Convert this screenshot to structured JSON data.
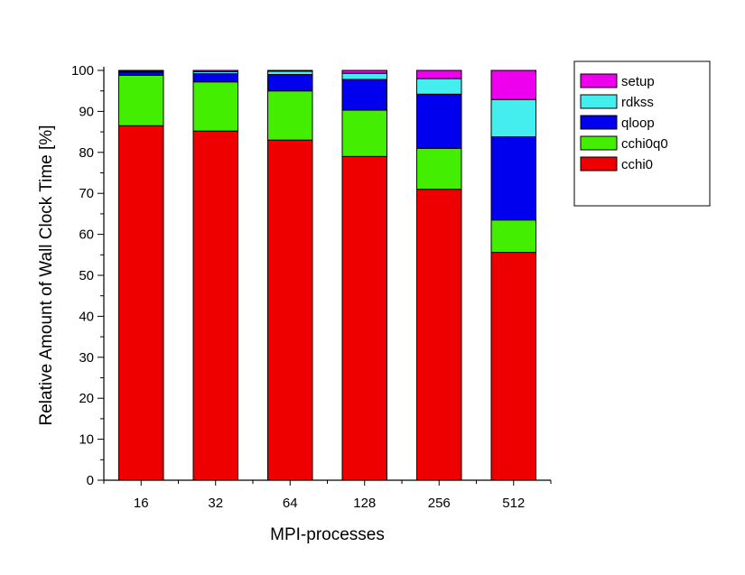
{
  "chart_data": {
    "type": "bar",
    "stacked": true,
    "xlabel": "MPI-processes",
    "ylabel": "Relative Amount of Wall Clock Time [%]",
    "categories": [
      "16",
      "32",
      "64",
      "128",
      "256",
      "512"
    ],
    "ylim": [
      0,
      100
    ],
    "yticks": [
      0,
      10,
      20,
      30,
      40,
      50,
      60,
      70,
      80,
      90,
      100
    ],
    "grid": false,
    "legend_position": "right",
    "series": [
      {
        "name": "cchi0",
        "color": "#ee0000",
        "values": [
          86.5,
          85.2,
          83.0,
          79.0,
          71.0,
          55.6
        ]
      },
      {
        "name": "cchi0q0",
        "color": "#44ee00",
        "values": [
          12.3,
          12.0,
          12.0,
          11.3,
          10.0,
          7.9
        ]
      },
      {
        "name": "qloop",
        "color": "#0000ee",
        "values": [
          0.8,
          2.0,
          4.0,
          7.5,
          13.2,
          20.3
        ]
      },
      {
        "name": "rdkss",
        "color": "#44eeee",
        "values": [
          0.2,
          0.5,
          0.8,
          1.5,
          3.8,
          9.1
        ]
      },
      {
        "name": "setup",
        "color": "#ee00ee",
        "values": [
          0.2,
          0.3,
          0.2,
          0.7,
          2.0,
          7.1
        ]
      }
    ],
    "legend_order": [
      "setup",
      "rdkss",
      "qloop",
      "cchi0q0",
      "cchi0"
    ]
  }
}
